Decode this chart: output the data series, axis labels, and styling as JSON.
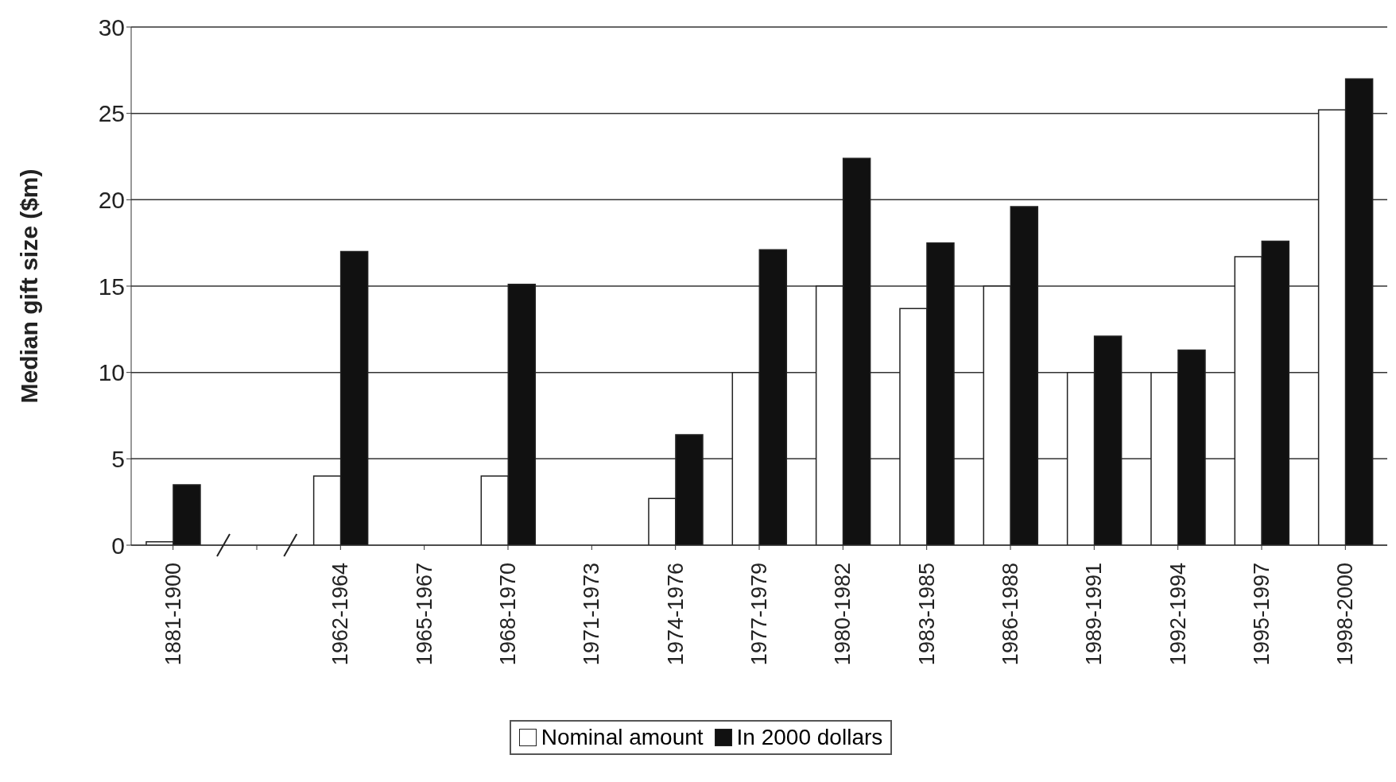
{
  "chart_data": {
    "type": "bar",
    "ylabel": "Median gift size ($m)",
    "categories": [
      "1881-1900",
      null,
      "1962-1964",
      "1965-1967",
      "1968-1970",
      "1971-1973",
      "1974-1976",
      "1977-1979",
      "1980-1982",
      "1983-1985",
      "1986-1988",
      "1989-1991",
      "1992-1994",
      "1995-1997",
      "1998-2000"
    ],
    "series": [
      {
        "name": "Nominal amount",
        "color": "#ffffff",
        "values": [
          0.2,
          null,
          4,
          null,
          4,
          null,
          2.7,
          10,
          15,
          13.7,
          15,
          10,
          10,
          16.7,
          25.2
        ]
      },
      {
        "name": "In 2000 dollars",
        "color": "#111111",
        "values": [
          3.5,
          null,
          17,
          null,
          15.1,
          null,
          6.4,
          17.1,
          22.4,
          17.5,
          19.6,
          12.1,
          11.3,
          17.6,
          27
        ]
      }
    ],
    "ylim": [
      0,
      30
    ],
    "yticks": [
      0,
      5,
      10,
      15,
      20,
      25,
      30
    ],
    "grid": "y",
    "legend": "bottom"
  }
}
